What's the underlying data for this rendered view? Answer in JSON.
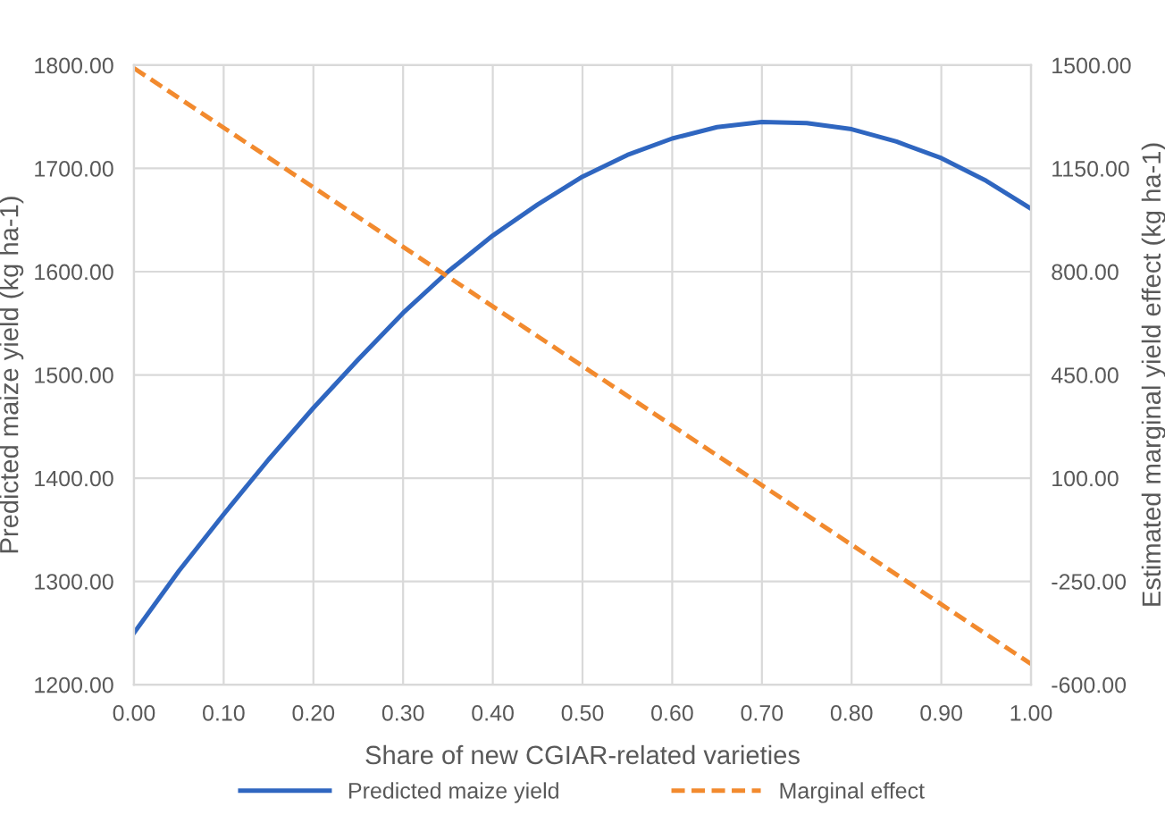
{
  "chart_data": {
    "type": "line",
    "xlabel": "Share of new CGIAR-related varieties",
    "ylabel": "Predicted maize yield (kg ha-1)",
    "y2label": "Estimated marginal yield effect (kg ha-1)",
    "x": [
      0,
      0.05,
      0.1,
      0.15,
      0.2,
      0.25,
      0.3,
      0.35,
      0.4,
      0.45,
      0.5,
      0.55,
      0.6,
      0.65,
      0.7,
      0.75,
      0.8,
      0.85,
      0.9,
      0.95,
      1.0
    ],
    "series": [
      {
        "name": "Predicted maize yield",
        "color": "#2f66c0",
        "line_style": "solid",
        "values": [
          1250,
          1310,
          1365,
          1418,
          1468,
          1515,
          1560,
          1600,
          1635,
          1665,
          1692,
          1713,
          1729,
          1740,
          1745,
          1744,
          1738,
          1726,
          1710,
          1688,
          1661
        ]
      },
      {
        "name": "Marginal effect",
        "color": "#f28a2e",
        "line_style": "dashed",
        "axis": "y2",
        "x": [
          0,
          1
        ],
        "values": [
          1490,
          -530
        ]
      }
    ],
    "xlim": [
      0,
      1
    ],
    "xticks": [
      {
        "value": 0,
        "label": "0.00"
      },
      {
        "value": 0.1,
        "label": "0.10"
      },
      {
        "value": 0.2,
        "label": "0.20"
      },
      {
        "value": 0.3,
        "label": "0.30"
      },
      {
        "value": 0.4,
        "label": "0.40"
      },
      {
        "value": 0.5,
        "label": "0.50"
      },
      {
        "value": 0.6,
        "label": "0.60"
      },
      {
        "value": 0.7,
        "label": "0.70"
      },
      {
        "value": 0.8,
        "label": "0.80"
      },
      {
        "value": 0.9,
        "label": "0.90"
      },
      {
        "value": 1,
        "label": "1.00"
      }
    ],
    "ylim": [
      1200,
      1800
    ],
    "yticks": [
      {
        "value": 1200,
        "label": "1200.00"
      },
      {
        "value": 1300,
        "label": "1300.00"
      },
      {
        "value": 1400,
        "label": "1400.00"
      },
      {
        "value": 1500,
        "label": "1500.00"
      },
      {
        "value": 1600,
        "label": "1600.00"
      },
      {
        "value": 1700,
        "label": "1700.00"
      },
      {
        "value": 1800,
        "label": "1800.00"
      }
    ],
    "y2lim": [
      -600,
      1500
    ],
    "y2ticks": [
      {
        "value": -600,
        "label": "-600.00"
      },
      {
        "value": -250,
        "label": "-250.00"
      },
      {
        "value": 100,
        "label": "100.00"
      },
      {
        "value": 450,
        "label": "450.00"
      },
      {
        "value": 800,
        "label": "800.00"
      },
      {
        "value": 1150,
        "label": "1150.00"
      },
      {
        "value": 1500,
        "label": "1500.00"
      }
    ],
    "grid": true,
    "legend": "bottom"
  }
}
